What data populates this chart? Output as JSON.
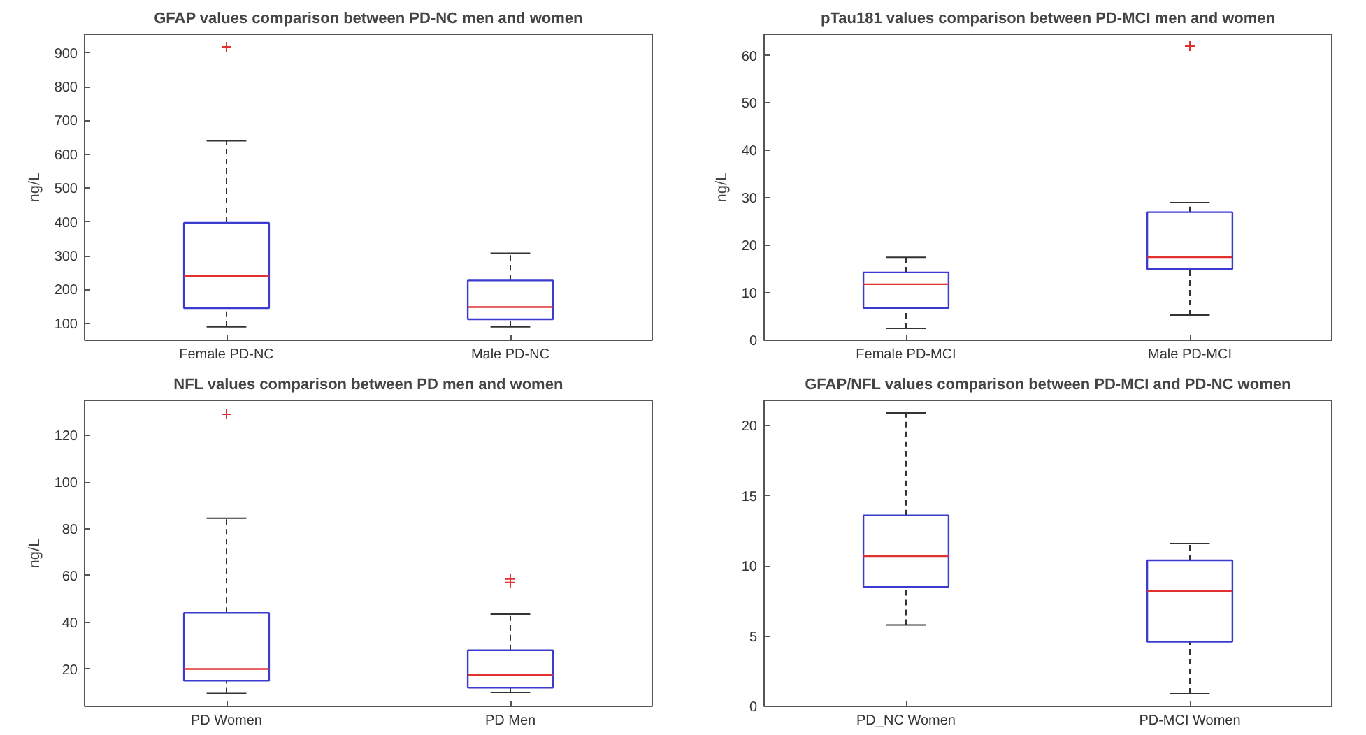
{
  "chart_data": [
    {
      "type": "box",
      "title": "GFAP values comparison between PD-NC men and women",
      "ylabel": "ng/L",
      "categories": [
        "Female PD-NC",
        "Male PD-NC"
      ],
      "color": "#3b3bd0",
      "ylim": [
        50,
        955
      ],
      "yticks": [
        100,
        200,
        300,
        400,
        500,
        600,
        700,
        800,
        900
      ],
      "grid": false,
      "boxes": [
        {
          "low": 90,
          "q1": 145,
          "median": 240,
          "q3": 397,
          "high": 640,
          "outliers": [
            918
          ]
        },
        {
          "low": 90,
          "q1": 112,
          "median": 148,
          "q3": 227,
          "high": 307
        }
      ]
    },
    {
      "type": "box",
      "title": "pTau181 values comparison between PD-MCI men and women",
      "ylabel": "ng/L",
      "categories": [
        "Female PD-MCI",
        "Male PD-MCI"
      ],
      "color": "#3b3bd0",
      "ylim": [
        0,
        64.5
      ],
      "yticks": [
        0,
        10,
        20,
        30,
        40,
        50,
        60
      ],
      "grid": false,
      "boxes": [
        {
          "low": 2.5,
          "q1": 6.8,
          "median": 11.8,
          "q3": 14.3,
          "high": 17.5
        },
        {
          "low": 5.3,
          "q1": 15,
          "median": 17.5,
          "q3": 27,
          "high": 29,
          "outliers": [
            62
          ]
        }
      ]
    },
    {
      "type": "box",
      "title": "NFL values comparison between PD men and women",
      "ylabel": "ng/L",
      "categories": [
        "PD Women",
        "PD Men"
      ],
      "color": "#3b3bd0",
      "ylim": [
        4,
        135
      ],
      "yticks": [
        20,
        40,
        60,
        80,
        100,
        120
      ],
      "grid": false,
      "boxes": [
        {
          "low": 9.5,
          "q1": 15,
          "median": 20,
          "q3": 44,
          "high": 84.5,
          "outliers": [
            129
          ]
        },
        {
          "low": 10,
          "q1": 12,
          "median": 17.5,
          "q3": 28,
          "high": 43.5,
          "outliers": [
            57,
            58.5
          ]
        }
      ]
    },
    {
      "type": "box",
      "title": "GFAP/NFL values comparison between PD-MCI and PD-NC women",
      "categories": [
        "PD_NC Women",
        "PD-MCI Women"
      ],
      "color": "#3b3bd0",
      "ylim": [
        0,
        21.8
      ],
      "yticks": [
        0,
        5,
        10,
        15,
        20
      ],
      "grid": false,
      "boxes": [
        {
          "low": 5.8,
          "q1": 8.5,
          "median": 10.7,
          "q3": 13.6,
          "high": 20.9
        },
        {
          "low": 0.9,
          "q1": 4.6,
          "median": 8.2,
          "q3": 10.4,
          "high": 11.6
        }
      ]
    }
  ]
}
